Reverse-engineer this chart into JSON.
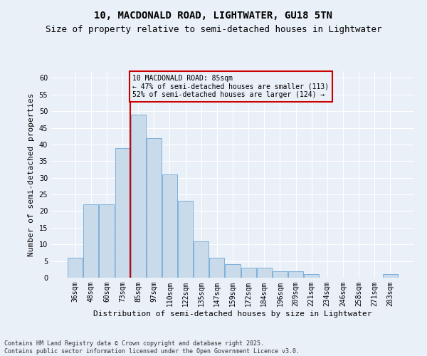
{
  "title": "10, MACDONALD ROAD, LIGHTWATER, GU18 5TN",
  "subtitle": "Size of property relative to semi-detached houses in Lightwater",
  "xlabel": "Distribution of semi-detached houses by size in Lightwater",
  "ylabel": "Number of semi-detached properties",
  "categories": [
    "36sqm",
    "48sqm",
    "60sqm",
    "73sqm",
    "85sqm",
    "97sqm",
    "110sqm",
    "122sqm",
    "135sqm",
    "147sqm",
    "159sqm",
    "172sqm",
    "184sqm",
    "196sqm",
    "209sqm",
    "221sqm",
    "234sqm",
    "246sqm",
    "258sqm",
    "271sqm",
    "283sqm"
  ],
  "values": [
    6,
    22,
    22,
    39,
    49,
    42,
    31,
    23,
    11,
    6,
    4,
    3,
    3,
    2,
    2,
    1,
    0,
    0,
    0,
    0,
    1
  ],
  "bar_color": "#c9daea",
  "bar_edge_color": "#6fa8d6",
  "vline_x": 4.0,
  "vline_color": "#cc0000",
  "annotation_box_text": "10 MACDONALD ROAD: 85sqm\n← 47% of semi-detached houses are smaller (113)\n52% of semi-detached houses are larger (124) →",
  "annotation_box_color": "#cc0000",
  "ylim": [
    0,
    62
  ],
  "yticks": [
    0,
    5,
    10,
    15,
    20,
    25,
    30,
    35,
    40,
    45,
    50,
    55,
    60
  ],
  "bg_color": "#eaf0f8",
  "grid_color": "#ffffff",
  "footnote": "Contains HM Land Registry data © Crown copyright and database right 2025.\nContains public sector information licensed under the Open Government Licence v3.0.",
  "title_fontsize": 10,
  "subtitle_fontsize": 9,
  "xlabel_fontsize": 8,
  "ylabel_fontsize": 8,
  "tick_fontsize": 7,
  "annot_fontsize": 7,
  "footnote_fontsize": 6
}
